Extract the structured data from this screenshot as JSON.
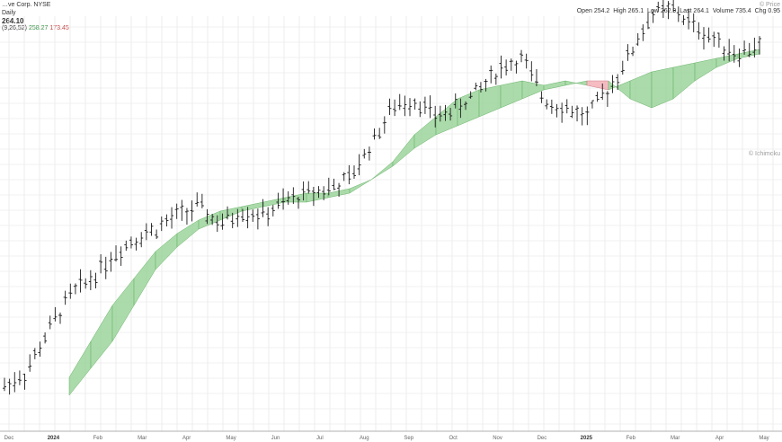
{
  "header": {
    "title": "…ve Corp. NYSE",
    "interval": "Daily",
    "price_line": "264.10",
    "legend_ichimoku": "(9,26,52)",
    "legend_value_green": "258.27",
    "legend_value_red": "173.45",
    "ohlc": {
      "open_label": "Open",
      "open": "254.2",
      "high_label": "High",
      "high": "265.1",
      "low_label": "Low",
      "low": "262.9",
      "last_label": "Last",
      "last": "264.1",
      "volume_label": "Volume",
      "volume": "735.4",
      "chg_label": "Chg",
      "chg": "0.95"
    },
    "watermark": "© Price",
    "watermark_sub": "© Ichimoku"
  },
  "chart_data": {
    "type": "ohlc",
    "x": [
      "2023-12-26",
      "2024-01-08",
      "2024-01-22",
      "2024-02-05",
      "2024-02-20",
      "2024-03-04",
      "2024-03-18",
      "2024-04-01",
      "2024-04-15",
      "2024-04-29",
      "2024-05-13",
      "2024-05-28",
      "2024-06-10",
      "2024-06-24",
      "2024-07-08",
      "2024-07-22",
      "2024-08-05",
      "2024-08-19",
      "2024-09-03",
      "2024-09-16",
      "2024-09-30",
      "2024-10-14",
      "2024-10-28",
      "2024-11-11",
      "2024-11-25",
      "2024-12-09",
      "2024-12-23",
      "2025-01-06",
      "2025-01-21",
      "2025-02-03",
      "2025-02-18",
      "2025-03-03",
      "2025-03-17",
      "2025-03-31",
      "2025-04-14",
      "2025-04-28"
    ],
    "close": [
      10,
      25,
      70,
      110,
      130,
      155,
      175,
      185,
      200,
      210,
      190,
      205,
      200,
      215,
      225,
      230,
      240,
      280,
      320,
      330,
      310,
      320,
      340,
      365,
      375,
      330,
      320,
      310,
      340,
      380,
      425,
      430,
      410,
      395,
      380,
      390
    ],
    "cloud": {
      "span_a": [
        -30,
        -20,
        -10,
        20,
        60,
        100,
        130,
        160,
        180,
        195,
        205,
        210,
        215,
        220,
        225,
        225,
        230,
        240,
        260,
        290,
        310,
        330,
        340,
        345,
        350,
        345,
        350,
        345,
        340,
        350,
        360,
        365,
        370,
        375,
        380,
        385
      ],
      "span_b": [
        -30,
        -20,
        -10,
        0,
        30,
        60,
        100,
        140,
        165,
        185,
        195,
        205,
        210,
        215,
        215,
        220,
        225,
        240,
        255,
        275,
        290,
        300,
        310,
        320,
        330,
        340,
        345,
        350,
        350,
        330,
        320,
        330,
        350,
        365,
        375,
        380
      ]
    },
    "x_tick_labels": [
      "Dec",
      "2024",
      "Feb",
      "Mar",
      "Apr",
      "May",
      "Jun",
      "Jul",
      "Aug",
      "Sep",
      "Oct",
      "Nov",
      "Dec",
      "2025",
      "Feb",
      "Mar",
      "Apr",
      "May"
    ],
    "grid": true,
    "colors": {
      "bars": "#1a1a1a",
      "cloud_bull": "#8fcf8f",
      "cloud_bear": "#f1a6ad",
      "grid": "#e3e3e3"
    }
  }
}
